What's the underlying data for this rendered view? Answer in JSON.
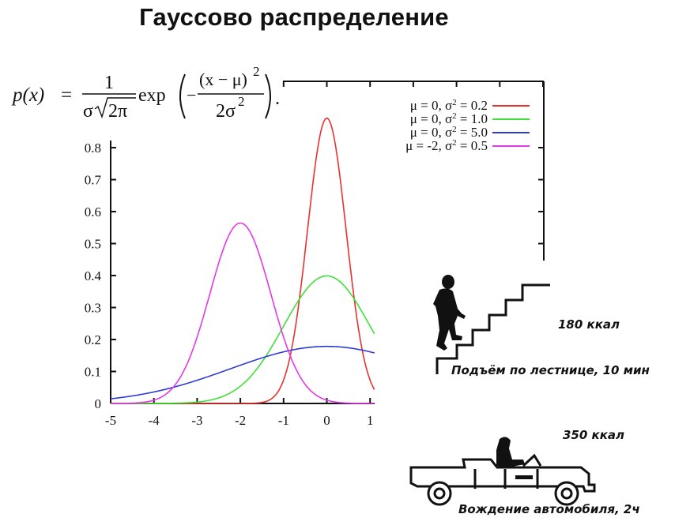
{
  "title": "Гауссово распределение",
  "formula": {
    "lhs": "p(x)",
    "equals": "=",
    "numerator": "1",
    "denominator_sigma": "σ",
    "denominator_root": "2π",
    "exp": "exp",
    "exp_numerator": "(x − μ)",
    "exp_numerator_power": "2",
    "exp_denominator": "2σ",
    "exp_denominator_power": "2",
    "minus": "−",
    "period": "."
  },
  "chart_data": {
    "type": "line",
    "title": "",
    "xlabel": "",
    "ylabel": "",
    "xlim": [
      -5,
      1
    ],
    "ylim": [
      0,
      0.85
    ],
    "x_ticks": [
      "-5",
      "-4",
      "-3",
      "-2",
      "-1",
      "0",
      "1"
    ],
    "y_ticks": [
      "0",
      "0.1",
      "0.2",
      "0.3",
      "0.4",
      "0.5",
      "0.6",
      "0.7",
      "0.8"
    ],
    "grid": false,
    "legend_position": "top-right",
    "series": [
      {
        "name": "μ = 0, σ² = 0.2",
        "mu": 0,
        "variance": 0.2,
        "color": "#e8322f",
        "peak": 0.892
      },
      {
        "name": "μ = 0, σ² = 1.0",
        "mu": 0,
        "variance": 1.0,
        "color": "#3ee03a",
        "peak": 0.399
      },
      {
        "name": "μ = 0, σ² = 5.0",
        "mu": 0,
        "variance": 5.0,
        "color": "#2d3ad6",
        "peak": 0.178
      },
      {
        "name": "μ = -2, σ² = 0.5",
        "mu": -2,
        "variance": 0.5,
        "color": "#e23ae6",
        "peak": 0.564
      }
    ]
  },
  "legend": {
    "items": [
      {
        "mu_part": "μ =  0, σ",
        "sup": "2",
        "sub": "2",
        "value": " = 0.2",
        "color": "#e8322f"
      },
      {
        "mu_part": "μ =  0, σ",
        "sup": "2",
        "sub": "2",
        "value": " = 1.0",
        "color": "#3ee03a"
      },
      {
        "mu_part": "μ =  0, σ",
        "sup": "2",
        "sub": "2",
        "value": " = 5.0",
        "color": "#2d3ad6"
      },
      {
        "mu_part": "μ = -2, σ",
        "sup": "2",
        "sub": "",
        "value": " = 0.5",
        "color": "#e23ae6"
      }
    ]
  },
  "illustration": {
    "stairs": {
      "kcal": "180 ккал",
      "caption": "Подъём по лестнице, 10 мин"
    },
    "car": {
      "kcal": "350 ккал",
      "caption": "Вождение автомобиля, 2ч"
    }
  }
}
